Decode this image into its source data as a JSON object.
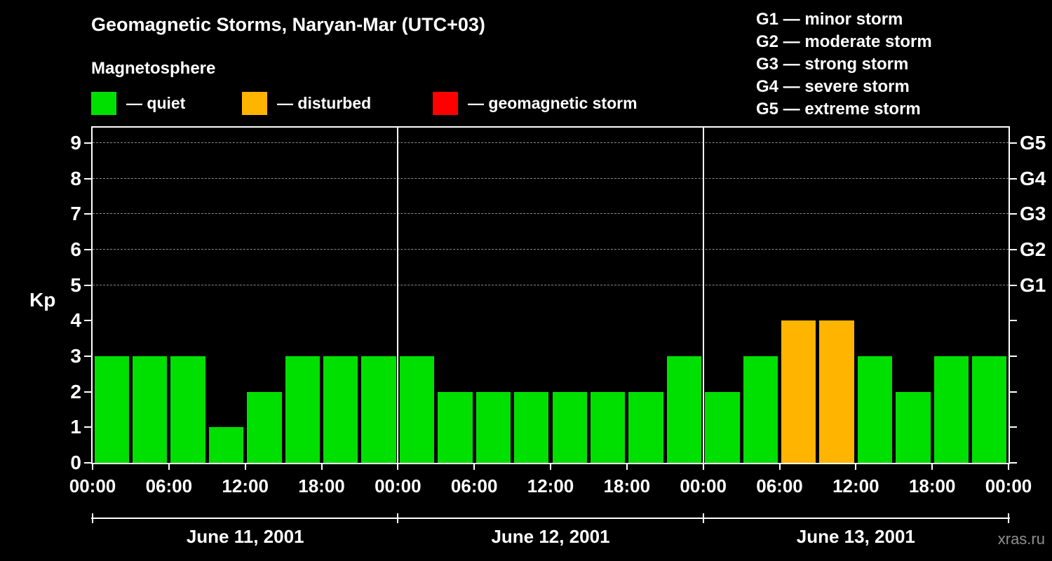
{
  "chart_data": {
    "type": "bar",
    "title": "Geomagnetic Storms, Naryan-Mar (UTC+03)",
    "ylabel": "Kp",
    "ylim": [
      0,
      9.5
    ],
    "y_ticks": [
      0,
      1,
      2,
      3,
      4,
      5,
      6,
      7,
      8,
      9
    ],
    "right_axis": [
      {
        "kp": 5,
        "label": "G1"
      },
      {
        "kp": 6,
        "label": "G2"
      },
      {
        "kp": 7,
        "label": "G3"
      },
      {
        "kp": 8,
        "label": "G4"
      },
      {
        "kp": 9,
        "label": "G5"
      }
    ],
    "gridlines_kp": [
      5,
      6,
      7,
      8,
      9
    ],
    "bin_hours": 3,
    "time_ticks_per_day": [
      "00:00",
      "06:00",
      "12:00",
      "18:00"
    ],
    "closing_time_tick": "00:00",
    "days": [
      {
        "date": "June 11, 2001",
        "kp_values": [
          3,
          3,
          3,
          1,
          2,
          3,
          3,
          3
        ]
      },
      {
        "date": "June 12, 2001",
        "kp_values": [
          3,
          2,
          2,
          2,
          2,
          2,
          2,
          3
        ]
      },
      {
        "date": "June 13, 2001",
        "kp_values": [
          2,
          3,
          4,
          4,
          3,
          2,
          3,
          3
        ]
      }
    ],
    "color_rules": {
      "quiet_max_kp": 3,
      "disturbed_max_kp": 4
    },
    "colors": {
      "quiet": "#00e000",
      "disturbed": "#ffb400",
      "storm": "#ff0000",
      "grid": "#9a9a9a",
      "axis": "#ffffff",
      "background": "#000000"
    }
  },
  "legend": {
    "title": "Magnetosphere",
    "items": [
      {
        "label": "— quiet",
        "color": "#00e000"
      },
      {
        "label": "— disturbed",
        "color": "#ffb400"
      },
      {
        "label": "— geomagnetic storm",
        "color": "#ff0000"
      }
    ]
  },
  "storm_scale": [
    "G1 — minor storm",
    "G2 — moderate storm",
    "G3 — strong storm",
    "G4 — severe storm",
    "G5 — extreme storm"
  ],
  "watermark": "xras.ru"
}
